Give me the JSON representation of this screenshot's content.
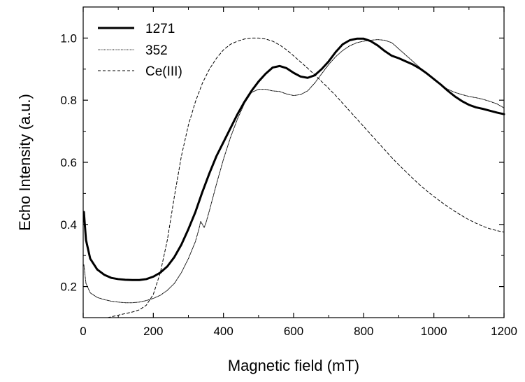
{
  "chart_data": {
    "type": "line",
    "title": "",
    "xlabel": "Magnetic field (mT)",
    "ylabel": "Echo Intensity (a.u.)",
    "xlim": [
      0,
      1200
    ],
    "ylim": [
      0.1,
      1.1
    ],
    "xticks": [
      0,
      200,
      400,
      600,
      800,
      1000,
      1200
    ],
    "yticks": [
      0.2,
      0.4,
      0.6,
      0.8,
      1.0
    ],
    "xtick_labels": [
      "0",
      "200",
      "400",
      "600",
      "800",
      "1000",
      "1200"
    ],
    "ytick_labels": [
      "0.2",
      "0.4",
      "0.6",
      "0.8",
      "1.0"
    ],
    "grid": false,
    "legend_position": "top-left",
    "series": [
      {
        "name": "1271",
        "style": "solid",
        "weight": "thick",
        "color": "#000000",
        "points": [
          [
            2,
            0.44
          ],
          [
            8,
            0.35
          ],
          [
            20,
            0.29
          ],
          [
            40,
            0.255
          ],
          [
            60,
            0.238
          ],
          [
            80,
            0.228
          ],
          [
            100,
            0.224
          ],
          [
            120,
            0.222
          ],
          [
            140,
            0.221
          ],
          [
            160,
            0.221
          ],
          [
            180,
            0.224
          ],
          [
            200,
            0.232
          ],
          [
            220,
            0.245
          ],
          [
            240,
            0.265
          ],
          [
            260,
            0.295
          ],
          [
            280,
            0.335
          ],
          [
            300,
            0.385
          ],
          [
            320,
            0.44
          ],
          [
            340,
            0.505
          ],
          [
            360,
            0.565
          ],
          [
            380,
            0.62
          ],
          [
            400,
            0.665
          ],
          [
            420,
            0.71
          ],
          [
            440,
            0.755
          ],
          [
            460,
            0.795
          ],
          [
            480,
            0.83
          ],
          [
            500,
            0.86
          ],
          [
            520,
            0.885
          ],
          [
            540,
            0.905
          ],
          [
            560,
            0.91
          ],
          [
            580,
            0.903
          ],
          [
            600,
            0.888
          ],
          [
            620,
            0.876
          ],
          [
            640,
            0.872
          ],
          [
            660,
            0.88
          ],
          [
            680,
            0.9
          ],
          [
            700,
            0.925
          ],
          [
            720,
            0.955
          ],
          [
            740,
            0.98
          ],
          [
            760,
            0.993
          ],
          [
            780,
            0.998
          ],
          [
            800,
            0.998
          ],
          [
            820,
            0.99
          ],
          [
            840,
            0.976
          ],
          [
            860,
            0.958
          ],
          [
            880,
            0.943
          ],
          [
            900,
            0.935
          ],
          [
            920,
            0.925
          ],
          [
            940,
            0.915
          ],
          [
            960,
            0.902
          ],
          [
            980,
            0.886
          ],
          [
            1000,
            0.868
          ],
          [
            1020,
            0.85
          ],
          [
            1040,
            0.83
          ],
          [
            1060,
            0.812
          ],
          [
            1080,
            0.797
          ],
          [
            1100,
            0.785
          ],
          [
            1120,
            0.777
          ],
          [
            1140,
            0.772
          ],
          [
            1160,
            0.766
          ],
          [
            1180,
            0.76
          ],
          [
            1200,
            0.755
          ]
        ]
      },
      {
        "name": "352",
        "style": "dotted",
        "weight": "thin",
        "color": "#000000",
        "points": [
          [
            2,
            0.27
          ],
          [
            8,
            0.21
          ],
          [
            20,
            0.18
          ],
          [
            40,
            0.165
          ],
          [
            60,
            0.158
          ],
          [
            80,
            0.153
          ],
          [
            100,
            0.15
          ],
          [
            120,
            0.148
          ],
          [
            140,
            0.148
          ],
          [
            160,
            0.15
          ],
          [
            180,
            0.155
          ],
          [
            200,
            0.162
          ],
          [
            220,
            0.172
          ],
          [
            240,
            0.188
          ],
          [
            260,
            0.21
          ],
          [
            280,
            0.245
          ],
          [
            300,
            0.29
          ],
          [
            320,
            0.345
          ],
          [
            330,
            0.385
          ],
          [
            335,
            0.41
          ],
          [
            340,
            0.4
          ],
          [
            345,
            0.39
          ],
          [
            350,
            0.405
          ],
          [
            360,
            0.445
          ],
          [
            380,
            0.53
          ],
          [
            400,
            0.61
          ],
          [
            420,
            0.68
          ],
          [
            440,
            0.74
          ],
          [
            460,
            0.79
          ],
          [
            480,
            0.825
          ],
          [
            500,
            0.835
          ],
          [
            520,
            0.835
          ],
          [
            540,
            0.83
          ],
          [
            560,
            0.828
          ],
          [
            580,
            0.82
          ],
          [
            600,
            0.815
          ],
          [
            620,
            0.818
          ],
          [
            640,
            0.83
          ],
          [
            660,
            0.855
          ],
          [
            680,
            0.885
          ],
          [
            700,
            0.915
          ],
          [
            720,
            0.94
          ],
          [
            740,
            0.96
          ],
          [
            760,
            0.975
          ],
          [
            780,
            0.985
          ],
          [
            800,
            0.99
          ],
          [
            820,
            0.993
          ],
          [
            840,
            0.995
          ],
          [
            860,
            0.993
          ],
          [
            880,
            0.985
          ],
          [
            900,
            0.965
          ],
          [
            920,
            0.945
          ],
          [
            940,
            0.925
          ],
          [
            960,
            0.905
          ],
          [
            980,
            0.885
          ],
          [
            1000,
            0.865
          ],
          [
            1020,
            0.848
          ],
          [
            1040,
            0.835
          ],
          [
            1060,
            0.825
          ],
          [
            1080,
            0.818
          ],
          [
            1100,
            0.812
          ],
          [
            1120,
            0.808
          ],
          [
            1140,
            0.803
          ],
          [
            1160,
            0.796
          ],
          [
            1180,
            0.788
          ],
          [
            1200,
            0.775
          ]
        ]
      },
      {
        "name": "Ce(III)",
        "style": "dashed",
        "weight": "thin",
        "color": "#000000",
        "points": [
          [
            70,
            0.1
          ],
          [
            100,
            0.108
          ],
          [
            120,
            0.113
          ],
          [
            140,
            0.118
          ],
          [
            160,
            0.125
          ],
          [
            180,
            0.14
          ],
          [
            200,
            0.175
          ],
          [
            220,
            0.245
          ],
          [
            240,
            0.35
          ],
          [
            260,
            0.49
          ],
          [
            280,
            0.62
          ],
          [
            300,
            0.72
          ],
          [
            320,
            0.795
          ],
          [
            340,
            0.855
          ],
          [
            360,
            0.9
          ],
          [
            380,
            0.935
          ],
          [
            400,
            0.962
          ],
          [
            420,
            0.98
          ],
          [
            440,
            0.99
          ],
          [
            460,
            0.997
          ],
          [
            480,
            1.0
          ],
          [
            500,
            1.0
          ],
          [
            520,
            0.997
          ],
          [
            540,
            0.99
          ],
          [
            560,
            0.978
          ],
          [
            580,
            0.962
          ],
          [
            600,
            0.943
          ],
          [
            620,
            0.923
          ],
          [
            640,
            0.903
          ],
          [
            660,
            0.882
          ],
          [
            680,
            0.86
          ],
          [
            700,
            0.838
          ],
          [
            720,
            0.815
          ],
          [
            740,
            0.79
          ],
          [
            760,
            0.765
          ],
          [
            780,
            0.74
          ],
          [
            800,
            0.715
          ],
          [
            820,
            0.69
          ],
          [
            840,
            0.665
          ],
          [
            860,
            0.64
          ],
          [
            880,
            0.615
          ],
          [
            900,
            0.592
          ],
          [
            920,
            0.57
          ],
          [
            940,
            0.548
          ],
          [
            960,
            0.527
          ],
          [
            980,
            0.508
          ],
          [
            1000,
            0.49
          ],
          [
            1020,
            0.473
          ],
          [
            1040,
            0.457
          ],
          [
            1060,
            0.442
          ],
          [
            1080,
            0.428
          ],
          [
            1100,
            0.415
          ],
          [
            1120,
            0.404
          ],
          [
            1140,
            0.394
          ],
          [
            1160,
            0.386
          ],
          [
            1180,
            0.38
          ],
          [
            1200,
            0.375
          ]
        ]
      }
    ]
  }
}
